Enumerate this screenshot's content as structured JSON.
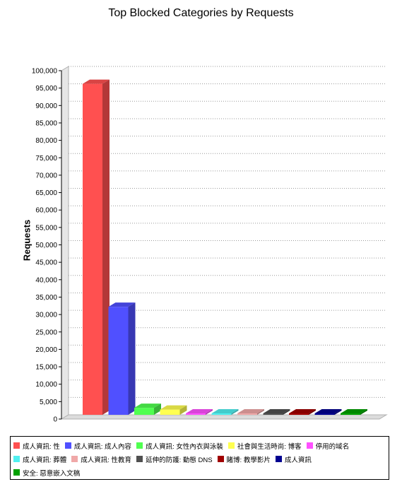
{
  "chart_data": {
    "type": "bar",
    "title": "Top Blocked Categories by Requests",
    "xlabel": "",
    "ylabel": "Requests",
    "ylim": [
      0,
      100000
    ],
    "yticks": [
      "0",
      "5,000",
      "10,000",
      "15,000",
      "20,000",
      "25,000",
      "30,000",
      "35,000",
      "40,000",
      "45,000",
      "50,000",
      "55,000",
      "60,000",
      "65,000",
      "70,000",
      "75,000",
      "80,000",
      "85,000",
      "90,000",
      "95,000",
      "100,000"
    ],
    "grid": true,
    "legend_position": "bottom",
    "categories": [
      "成人資訊: 性",
      "成人資訊: 成人內容",
      "成人資訊: 女性內衣與泳裝",
      "社會與生活時尚: 博客",
      "停用的域名",
      "成人資訊: 葬體",
      "成人資訊: 性教育",
      "延伸的防護: 動態 DNS",
      "賭博: 教學影片",
      "成人資訊",
      "安全: 惡意嵌入文稿"
    ],
    "values": [
      95000,
      31000,
      2000,
      1500,
      300,
      250,
      200,
      150,
      120,
      100,
      80
    ],
    "colors": [
      "#ff5050",
      "#5050ff",
      "#50ff50",
      "#ffff50",
      "#ff50ff",
      "#50f0f0",
      "#f0a8a8",
      "#505050",
      "#a00000",
      "#000090",
      "#00a000"
    ]
  }
}
